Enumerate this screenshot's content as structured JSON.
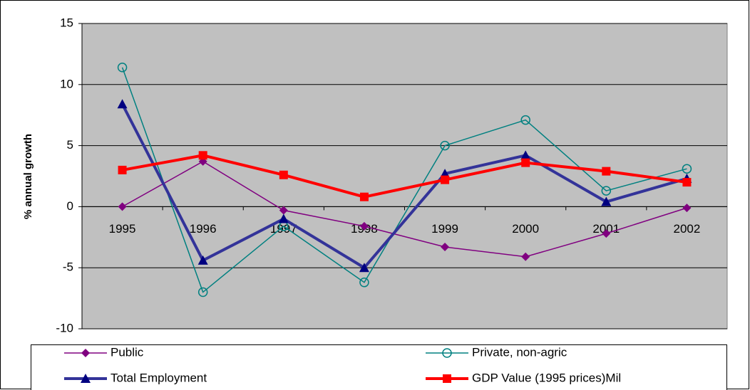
{
  "chart_data": {
    "type": "line",
    "y_axis_label": "% annual growth",
    "categories": [
      "1995",
      "1996",
      "1997",
      "1998",
      "1999",
      "2000",
      "2001",
      "2002"
    ],
    "series": [
      {
        "name": "Public",
        "color": "#800080",
        "marker": "diamond",
        "line_width": 1.5,
        "values": [
          0,
          3.7,
          -0.3,
          -1.6,
          -3.3,
          -4.1,
          -2.2,
          -0.1
        ]
      },
      {
        "name": "Private, non-agric",
        "color": "#008080",
        "marker": "circle",
        "line_width": 1.5,
        "values": [
          11.4,
          -7.0,
          -1.6,
          -6.2,
          5.0,
          7.1,
          1.3,
          3.1
        ]
      },
      {
        "name": "Total Employment",
        "color": "#333399",
        "marker": "triangle",
        "line_width": 4,
        "values": [
          8.4,
          -4.4,
          -1.0,
          -5.0,
          2.7,
          4.2,
          0.4,
          2.3
        ]
      },
      {
        "name": "GDP Value (1995 prices)Mil",
        "color": "#ff0000",
        "marker": "square",
        "line_width": 4,
        "values": [
          3.0,
          4.2,
          2.6,
          0.8,
          2.2,
          3.6,
          2.9,
          2.0
        ]
      }
    ],
    "ylim": [
      -10,
      15
    ],
    "yticks": [
      -10,
      -5,
      0,
      5,
      10,
      15
    ],
    "grid": true,
    "legend": "bottom"
  }
}
